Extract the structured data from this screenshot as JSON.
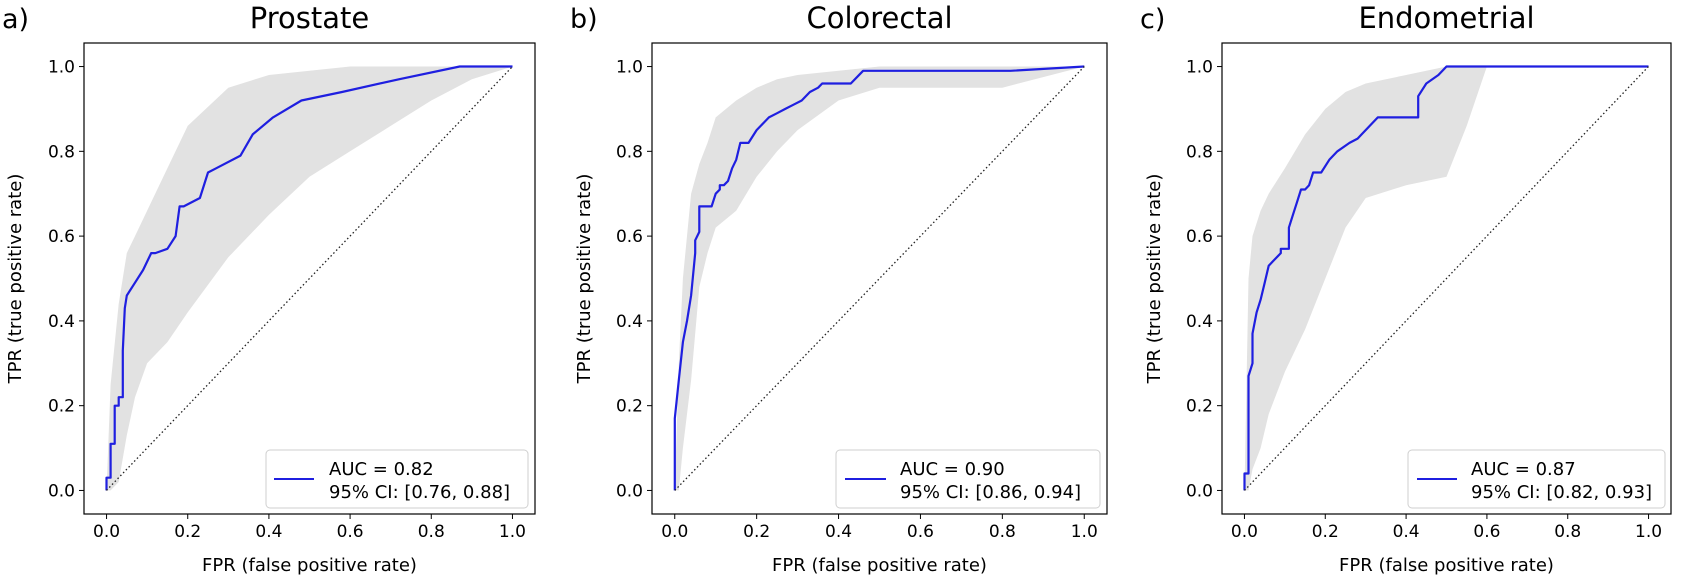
{
  "chart_data": [
    {
      "type": "line",
      "panel_label": "a)",
      "title": "Prostate",
      "xlabel": "FPR (false positive rate)",
      "ylabel": "TPR (true positive rate)",
      "xlim": [
        0,
        1
      ],
      "ylim": [
        0,
        1
      ],
      "xticks": [
        "0.0",
        "0.2",
        "0.4",
        "0.6",
        "0.8",
        "1.0"
      ],
      "yticks": [
        "0.0",
        "0.2",
        "0.4",
        "0.6",
        "0.8",
        "1.0"
      ],
      "grid": false,
      "legend_position": "lower-right",
      "legend": [
        "AUC = 0.82",
        "95% CI: [0.76, 0.88]"
      ],
      "series": [
        {
          "name": "AUC = 0.82",
          "color": "#1f1fe0",
          "x": [
            0.0,
            0.0,
            0.01,
            0.01,
            0.02,
            0.02,
            0.03,
            0.03,
            0.04,
            0.04,
            0.045,
            0.05,
            0.05,
            0.07,
            0.09,
            0.11,
            0.12,
            0.12,
            0.15,
            0.15,
            0.17,
            0.18,
            0.19,
            0.23,
            0.25,
            0.27,
            0.33,
            0.36,
            0.41,
            0.48,
            0.58,
            0.72,
            0.87,
            1.0
          ],
          "y": [
            0.0,
            0.03,
            0.03,
            0.11,
            0.11,
            0.2,
            0.2,
            0.22,
            0.22,
            0.33,
            0.43,
            0.46,
            0.46,
            0.49,
            0.52,
            0.56,
            0.56,
            0.56,
            0.57,
            0.57,
            0.6,
            0.67,
            0.67,
            0.69,
            0.75,
            0.76,
            0.79,
            0.84,
            0.88,
            0.92,
            0.94,
            0.97,
            1.0,
            1.0
          ]
        },
        {
          "name": "Chance",
          "color": "#222222",
          "x": [
            0,
            1
          ],
          "y": [
            0,
            1
          ]
        }
      ],
      "ci_band": {
        "color": "#e2e2e2",
        "x": [
          0.0,
          0.01,
          0.03,
          0.05,
          0.07,
          0.1,
          0.15,
          0.2,
          0.3,
          0.4,
          0.5,
          0.6,
          0.7,
          0.8,
          0.9,
          1.0
        ],
        "lower": [
          0.0,
          0.0,
          0.02,
          0.13,
          0.22,
          0.3,
          0.35,
          0.42,
          0.55,
          0.65,
          0.74,
          0.8,
          0.86,
          0.92,
          0.97,
          1.0
        ],
        "upper": [
          0.0,
          0.25,
          0.44,
          0.56,
          0.6,
          0.66,
          0.76,
          0.86,
          0.95,
          0.98,
          0.99,
          1.0,
          1.0,
          1.0,
          1.0,
          1.0
        ]
      }
    },
    {
      "type": "line",
      "panel_label": "b)",
      "title": "Colorectal",
      "xlabel": "FPR (false positive rate)",
      "ylabel": "TPR (true positive rate)",
      "xlim": [
        0,
        1
      ],
      "ylim": [
        0,
        1
      ],
      "xticks": [
        "0.0",
        "0.2",
        "0.4",
        "0.6",
        "0.8",
        "1.0"
      ],
      "yticks": [
        "0.0",
        "0.2",
        "0.4",
        "0.6",
        "0.8",
        "1.0"
      ],
      "grid": false,
      "legend_position": "lower-right",
      "legend": [
        "AUC = 0.90",
        "95% CI: [0.86, 0.94]"
      ],
      "series": [
        {
          "name": "AUC = 0.90",
          "color": "#1f1fe0",
          "x": [
            0.0,
            0.0,
            0.01,
            0.02,
            0.03,
            0.04,
            0.05,
            0.05,
            0.06,
            0.06,
            0.07,
            0.09,
            0.1,
            0.11,
            0.11,
            0.12,
            0.13,
            0.14,
            0.15,
            0.16,
            0.17,
            0.18,
            0.2,
            0.21,
            0.23,
            0.25,
            0.27,
            0.29,
            0.31,
            0.33,
            0.35,
            0.36,
            0.38,
            0.43,
            0.46,
            0.6,
            0.82,
            1.0
          ],
          "y": [
            0.0,
            0.17,
            0.26,
            0.35,
            0.4,
            0.46,
            0.56,
            0.59,
            0.61,
            0.67,
            0.67,
            0.67,
            0.7,
            0.71,
            0.72,
            0.72,
            0.73,
            0.76,
            0.78,
            0.82,
            0.82,
            0.82,
            0.85,
            0.86,
            0.88,
            0.89,
            0.9,
            0.91,
            0.92,
            0.94,
            0.95,
            0.96,
            0.96,
            0.96,
            0.99,
            0.99,
            0.99,
            1.0
          ]
        },
        {
          "name": "Chance",
          "color": "#222222",
          "x": [
            0,
            1
          ],
          "y": [
            0,
            1
          ]
        }
      ],
      "ci_band": {
        "color": "#e2e2e2",
        "x": [
          0.0,
          0.01,
          0.02,
          0.04,
          0.06,
          0.08,
          0.1,
          0.15,
          0.2,
          0.25,
          0.3,
          0.4,
          0.5,
          0.6,
          0.8,
          1.0
        ],
        "lower": [
          0.0,
          0.0,
          0.1,
          0.26,
          0.48,
          0.56,
          0.62,
          0.66,
          0.74,
          0.8,
          0.85,
          0.92,
          0.95,
          0.95,
          0.95,
          1.0
        ],
        "upper": [
          0.0,
          0.3,
          0.5,
          0.7,
          0.77,
          0.82,
          0.88,
          0.92,
          0.95,
          0.97,
          0.98,
          0.99,
          1.0,
          1.0,
          1.0,
          1.0
        ]
      }
    },
    {
      "type": "line",
      "panel_label": "c)",
      "title": "Endometrial",
      "xlabel": "FPR (false positive rate)",
      "ylabel": "TPR (true positive rate)",
      "xlim": [
        0,
        1
      ],
      "ylim": [
        0,
        1
      ],
      "xticks": [
        "0.0",
        "0.2",
        "0.4",
        "0.6",
        "0.8",
        "1.0"
      ],
      "yticks": [
        "0.0",
        "0.2",
        "0.4",
        "0.6",
        "0.8",
        "1.0"
      ],
      "grid": false,
      "legend_position": "lower-right",
      "legend": [
        "AUC = 0.87",
        "95% CI: [0.82, 0.93]"
      ],
      "series": [
        {
          "name": "AUC = 0.87",
          "color": "#1f1fe0",
          "x": [
            0.0,
            0.0,
            0.01,
            0.01,
            0.02,
            0.02,
            0.03,
            0.04,
            0.05,
            0.06,
            0.07,
            0.09,
            0.09,
            0.11,
            0.11,
            0.12,
            0.13,
            0.14,
            0.15,
            0.16,
            0.17,
            0.19,
            0.21,
            0.23,
            0.26,
            0.28,
            0.29,
            0.31,
            0.33,
            0.43,
            0.43,
            0.45,
            0.48,
            0.5,
            0.6,
            1.0
          ],
          "y": [
            0.0,
            0.04,
            0.04,
            0.27,
            0.3,
            0.37,
            0.42,
            0.45,
            0.49,
            0.53,
            0.54,
            0.56,
            0.57,
            0.57,
            0.62,
            0.65,
            0.68,
            0.71,
            0.71,
            0.72,
            0.75,
            0.75,
            0.78,
            0.8,
            0.82,
            0.83,
            0.84,
            0.86,
            0.88,
            0.88,
            0.93,
            0.96,
            0.98,
            1.0,
            1.0,
            1.0
          ]
        },
        {
          "name": "Chance",
          "color": "#222222",
          "x": [
            0,
            1
          ],
          "y": [
            0,
            1
          ]
        }
      ],
      "ci_band": {
        "color": "#e2e2e2",
        "x": [
          0.0,
          0.01,
          0.02,
          0.04,
          0.06,
          0.1,
          0.15,
          0.2,
          0.25,
          0.3,
          0.4,
          0.5,
          0.55,
          0.6,
          0.8,
          1.0
        ],
        "lower": [
          0.0,
          0.0,
          0.05,
          0.1,
          0.18,
          0.28,
          0.38,
          0.5,
          0.62,
          0.69,
          0.72,
          0.74,
          0.86,
          1.0,
          1.0,
          1.0
        ],
        "upper": [
          0.0,
          0.5,
          0.6,
          0.66,
          0.7,
          0.76,
          0.84,
          0.9,
          0.94,
          0.96,
          0.98,
          1.0,
          1.0,
          1.0,
          1.0,
          1.0
        ]
      }
    }
  ]
}
